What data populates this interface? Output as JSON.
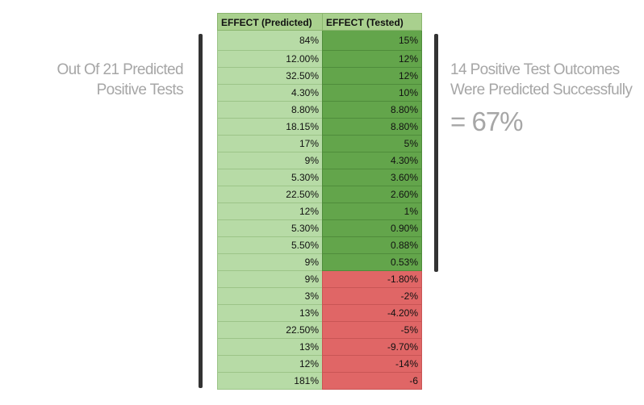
{
  "header": {
    "columns": [
      "EFFECT (Predicted)",
      "EFFECT (Tested)"
    ]
  },
  "table": {
    "rows": [
      [
        "84%",
        "15%"
      ],
      [
        "12.00%",
        "12%"
      ],
      [
        "32.50%",
        "12%"
      ],
      [
        "4.30%",
        "10%"
      ],
      [
        "8.80%",
        "8.80%"
      ],
      [
        "18.15%",
        "8.80%"
      ],
      [
        "17%",
        "5%"
      ],
      [
        "9%",
        "4.30%"
      ],
      [
        "5.30%",
        "3.60%"
      ],
      [
        "22.50%",
        "2.60%"
      ],
      [
        "12%",
        "1%"
      ],
      [
        "5.30%",
        "0.90%"
      ],
      [
        "5.50%",
        "0.88%"
      ],
      [
        "9%",
        "0.53%"
      ],
      [
        "9%",
        "-1.80%"
      ],
      [
        "3%",
        "-2%"
      ],
      [
        "13%",
        "-4.20%"
      ],
      [
        "22.50%",
        "-5%"
      ],
      [
        "13%",
        "-9.70%"
      ],
      [
        "12%",
        "-14%"
      ],
      [
        "181%",
        "-6"
      ]
    ]
  },
  "left_note": {
    "lines": [
      "Out Of 21 Predicted",
      "Positive Tests"
    ]
  },
  "right_note": {
    "lines": [
      "14 Positive Test Outcomes",
      "Were Predicted Successfully"
    ],
    "result": "= 67%"
  }
}
